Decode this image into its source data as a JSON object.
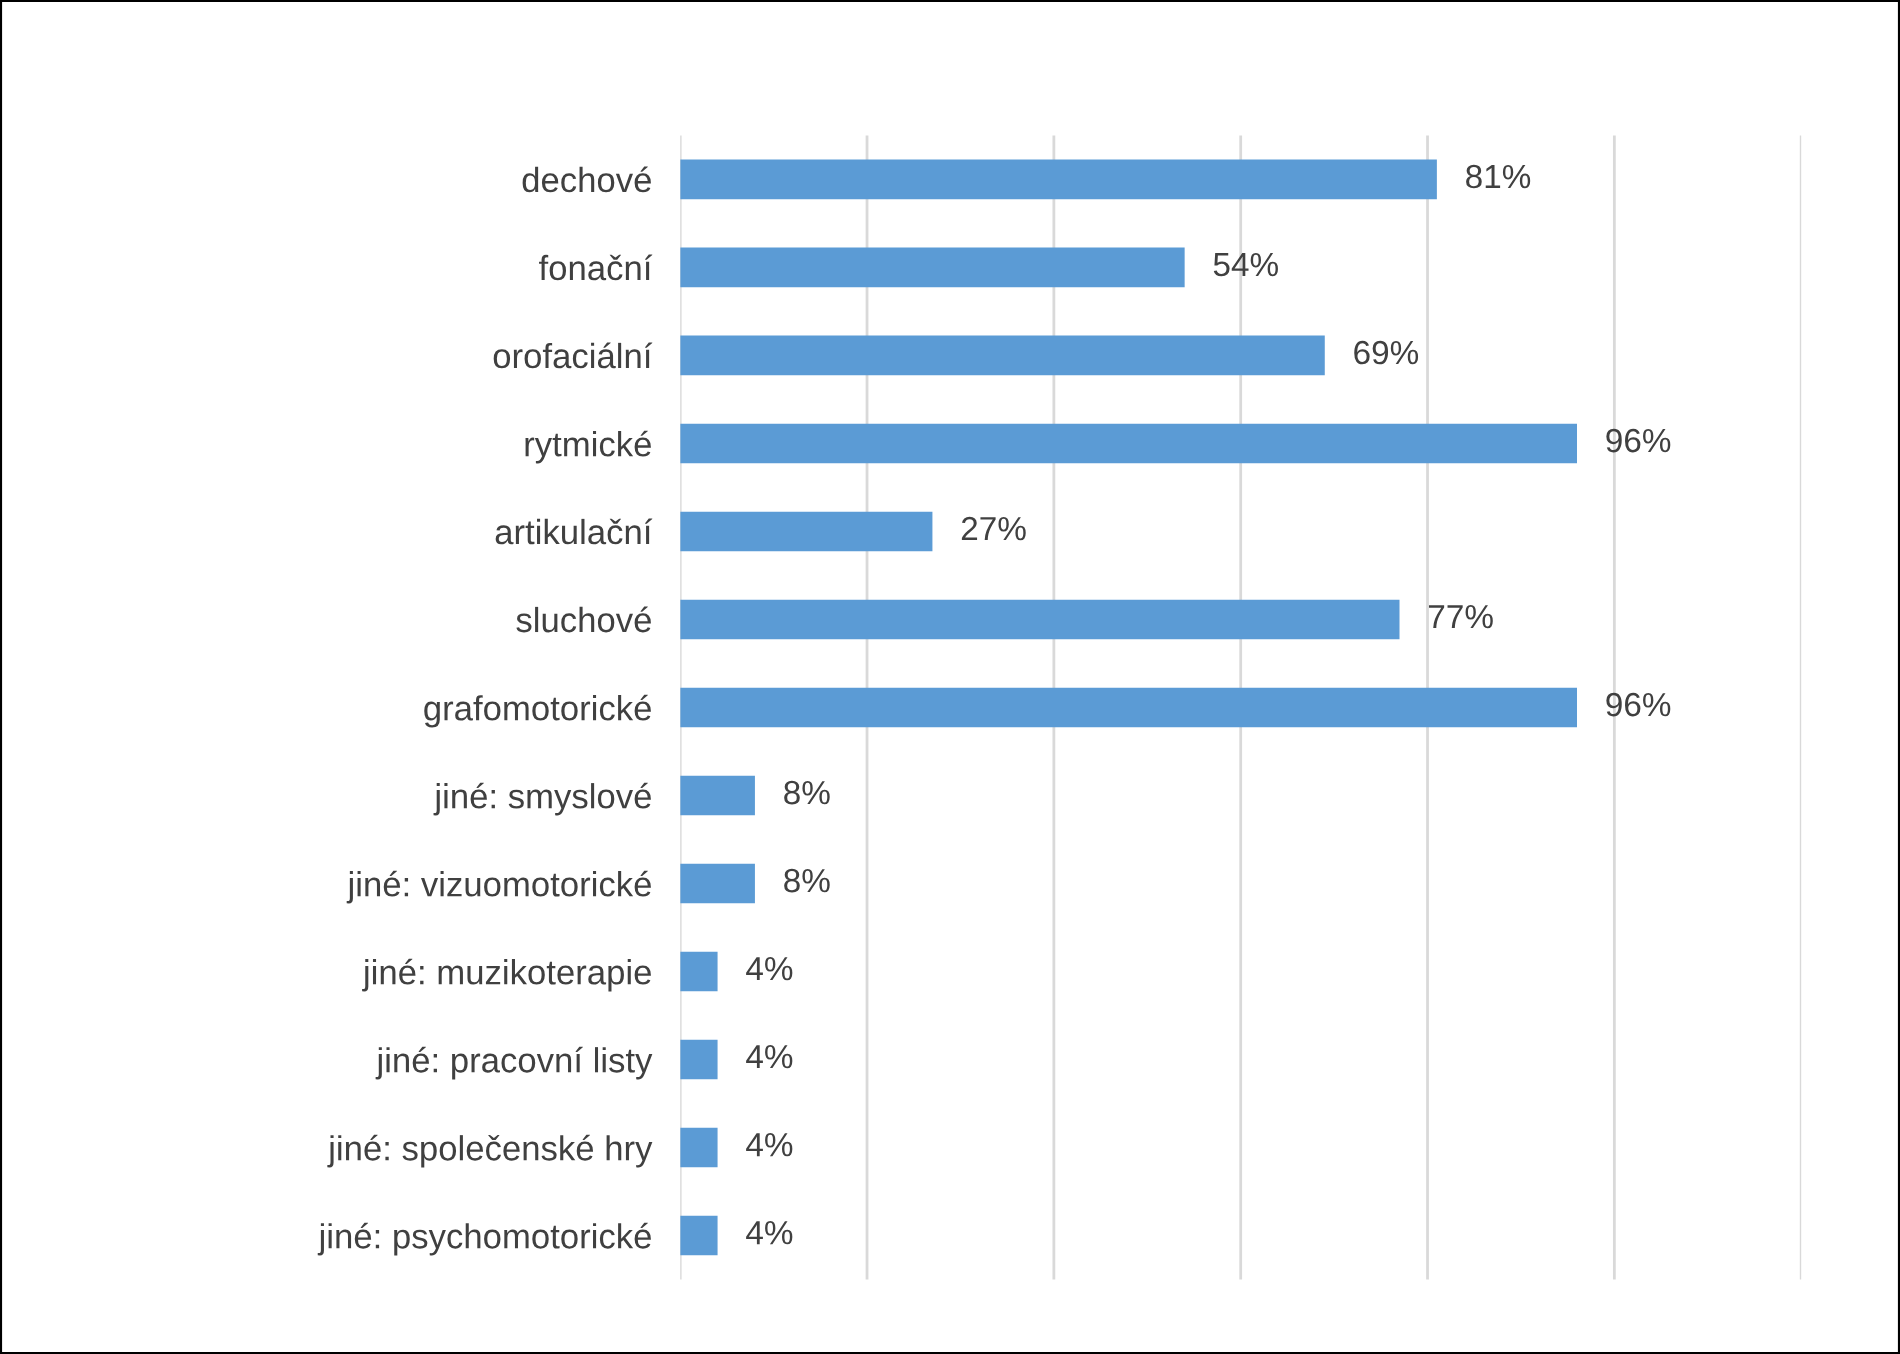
{
  "chart_data": {
    "type": "bar",
    "orientation": "horizontal",
    "categories": [
      "dechové",
      "fonační",
      "orofaciální",
      "rytmické",
      "artikulační",
      "sluchové",
      "grafomotorické",
      "jiné: smyslové",
      "jiné: vizuomotorické",
      "jiné: muzikoterapie",
      "jiné: pracovní listy",
      "jiné: společenské hry",
      "jiné: psychomotorické"
    ],
    "values": [
      81,
      54,
      69,
      96,
      27,
      77,
      96,
      8,
      8,
      4,
      4,
      4,
      4
    ],
    "value_labels": [
      "81%",
      "54%",
      "69%",
      "96%",
      "27%",
      "77%",
      "96%",
      "8%",
      "8%",
      "4%",
      "4%",
      "4%",
      "4%"
    ],
    "color": "#5b9bd5",
    "xlim": [
      0,
      120
    ],
    "xticks": [
      {
        "value": 0,
        "label": null
      },
      {
        "value": 20,
        "label": null
      },
      {
        "value": 40,
        "label": null
      },
      {
        "value": 60,
        "label": null
      },
      {
        "value": 80,
        "label": null
      },
      {
        "value": 100,
        "label": null
      },
      {
        "value": 120,
        "label": null
      }
    ],
    "grid": "x",
    "tick_labels": "y"
  }
}
